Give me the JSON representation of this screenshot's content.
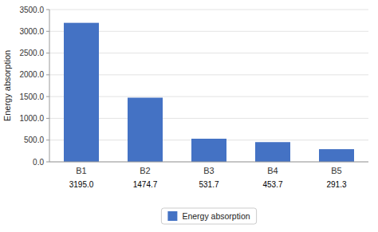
{
  "chart_data": {
    "type": "bar",
    "categories": [
      "B1",
      "B2",
      "B3",
      "B4",
      "B5"
    ],
    "series": [
      {
        "name": "Energy absorption",
        "color": "#4472C4",
        "values": [
          3195.0,
          1474.7,
          531.7,
          453.7,
          291.3
        ],
        "value_labels": [
          "3195.0",
          "1474.7",
          "531.7",
          "453.7",
          "291.3"
        ]
      }
    ],
    "ylabel": "Energy absorption",
    "ylim": [
      0,
      3500
    ],
    "yticks": [
      {
        "value": 0,
        "label": "0.0"
      },
      {
        "value": 500,
        "label": "500.0"
      },
      {
        "value": 1000,
        "label": "1000.0"
      },
      {
        "value": 1500,
        "label": "1500.0"
      },
      {
        "value": 2000,
        "label": "2000.0"
      },
      {
        "value": 2500,
        "label": "2500.0"
      },
      {
        "value": 3000,
        "label": "3000.0"
      },
      {
        "value": 3500,
        "label": "3500.0"
      }
    ],
    "grid": true,
    "data_labels": true,
    "legend": "bottom"
  }
}
